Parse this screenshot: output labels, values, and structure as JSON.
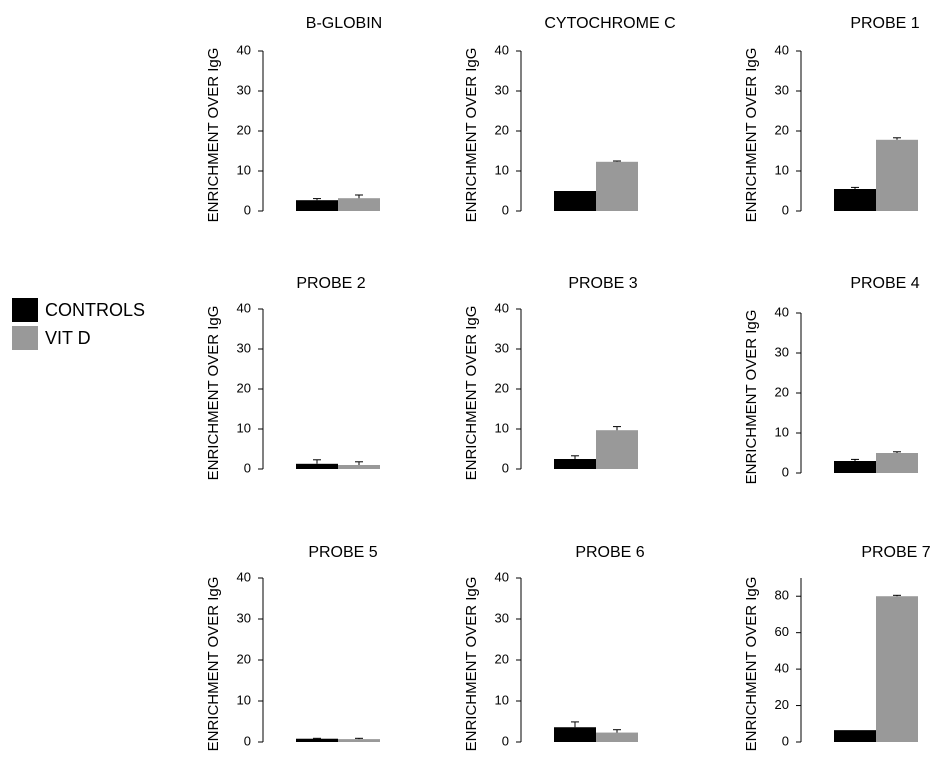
{
  "legend": {
    "items": [
      {
        "label": "CONTROLS",
        "color": "#000000"
      },
      {
        "label": "VIT D",
        "color": "#999999"
      }
    ]
  },
  "chart_data": [
    {
      "type": "bar",
      "title": "B-GLOBIN",
      "ylabel": "ENRICHMENT  OVER  IgG",
      "ylim": [
        0,
        40
      ],
      "yticks": [
        0,
        10,
        20,
        30,
        40
      ],
      "series": [
        {
          "name": "CONTROLS",
          "value": 2.7,
          "error": 0.4
        },
        {
          "name": "VIT D",
          "value": 3.2,
          "error": 0.8
        }
      ]
    },
    {
      "type": "bar",
      "title": "CYTOCHROME C",
      "ylabel": "ENRICHMENT  OVER  IgG",
      "ylim": [
        0,
        40
      ],
      "yticks": [
        0,
        10,
        20,
        30,
        40
      ],
      "series": [
        {
          "name": "CONTROLS",
          "value": 5.0,
          "error": 0.0
        },
        {
          "name": "VIT D",
          "value": 12.3,
          "error": 0.2
        }
      ]
    },
    {
      "type": "bar",
      "title": "PROBE 1",
      "ylabel": "ENRICHMENT  OVER  IgG",
      "ylim": [
        0,
        40
      ],
      "yticks": [
        0,
        10,
        20,
        30,
        40
      ],
      "series": [
        {
          "name": "CONTROLS",
          "value": 5.5,
          "error": 0.4
        },
        {
          "name": "VIT D",
          "value": 17.8,
          "error": 0.5
        }
      ]
    },
    {
      "type": "bar",
      "title": "PROBE 2",
      "ylabel": "ENRICHMENT  OVER  IgG",
      "ylim": [
        0,
        40
      ],
      "yticks": [
        0,
        10,
        20,
        30,
        40
      ],
      "series": [
        {
          "name": "CONTROLS",
          "value": 1.3,
          "error": 1.0
        },
        {
          "name": "VIT D",
          "value": 1.0,
          "error": 0.8
        }
      ]
    },
    {
      "type": "bar",
      "title": "PROBE 3",
      "ylabel": "ENRICHMENT  OVER  IgG",
      "ylim": [
        0,
        40
      ],
      "yticks": [
        0,
        10,
        20,
        30,
        40
      ],
      "series": [
        {
          "name": "CONTROLS",
          "value": 2.5,
          "error": 0.8
        },
        {
          "name": "VIT D",
          "value": 9.7,
          "error": 0.9
        }
      ]
    },
    {
      "type": "bar",
      "title": "PROBE 4",
      "ylabel": "ENRICHMENT  OVER  IgG",
      "ylim": [
        0,
        40
      ],
      "yticks": [
        0,
        10,
        20,
        30,
        40
      ],
      "series": [
        {
          "name": "CONTROLS",
          "value": 3.0,
          "error": 0.4
        },
        {
          "name": "VIT D",
          "value": 5.0,
          "error": 0.3
        }
      ]
    },
    {
      "type": "bar",
      "title": "PROBE 5",
      "ylabel": "ENRICHMENT  OVER  IgG",
      "ylim": [
        0,
        40
      ],
      "yticks": [
        0,
        10,
        20,
        30,
        40
      ],
      "series": [
        {
          "name": "CONTROLS",
          "value": 0.8,
          "error": 0.1
        },
        {
          "name": "VIT D",
          "value": 0.7,
          "error": 0.2
        }
      ]
    },
    {
      "type": "bar",
      "title": "PROBE 6",
      "ylabel": "ENRICHMENT  OVER  IgG",
      "ylim": [
        0,
        40
      ],
      "yticks": [
        0,
        10,
        20,
        30,
        40
      ],
      "series": [
        {
          "name": "CONTROLS",
          "value": 3.6,
          "error": 1.3
        },
        {
          "name": "VIT D",
          "value": 2.3,
          "error": 0.7
        }
      ]
    },
    {
      "type": "bar",
      "title": "PROBE 7",
      "ylabel": "ENRICHMENT  OVER  IgG",
      "ylim": [
        0,
        90
      ],
      "yticks": [
        0,
        20,
        40,
        60,
        80
      ],
      "series": [
        {
          "name": "CONTROLS",
          "value": 6.5,
          "error": 0.0
        },
        {
          "name": "VIT D",
          "value": 80.0,
          "error": 0.5
        }
      ]
    }
  ]
}
